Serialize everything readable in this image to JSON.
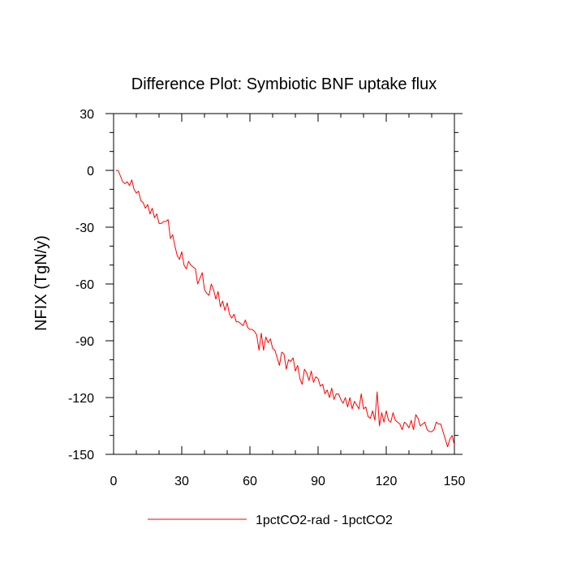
{
  "chart_data": {
    "type": "line",
    "title": "Difference Plot: Symbiotic BNF uptake flux",
    "ylabel": "NFIX  (TgN/y)",
    "xlabel": "",
    "xlim": [
      0,
      150
    ],
    "ylim": [
      -150,
      30
    ],
    "xticks": [
      0,
      30,
      60,
      90,
      120,
      150
    ],
    "yticks": [
      30,
      0,
      -30,
      -60,
      -90,
      -120,
      -150
    ],
    "grid": false,
    "legend_position": "bottom",
    "series": [
      {
        "name": "1pctCO2-rad - 1pctCO2",
        "color": "#ff0000",
        "x": [
          1,
          2,
          3,
          4,
          5,
          6,
          7,
          8,
          9,
          10,
          11,
          12,
          13,
          14,
          15,
          16,
          17,
          18,
          19,
          20,
          21,
          22,
          23,
          24,
          25,
          26,
          27,
          28,
          29,
          30,
          31,
          32,
          33,
          34,
          35,
          36,
          37,
          38,
          39,
          40,
          41,
          42,
          43,
          44,
          45,
          46,
          47,
          48,
          49,
          50,
          51,
          52,
          53,
          54,
          55,
          56,
          57,
          58,
          59,
          60,
          61,
          62,
          63,
          64,
          65,
          66,
          67,
          68,
          69,
          70,
          71,
          72,
          73,
          74,
          75,
          76,
          77,
          78,
          79,
          80,
          81,
          82,
          83,
          84,
          85,
          86,
          87,
          88,
          89,
          90,
          91,
          92,
          93,
          94,
          95,
          96,
          97,
          98,
          99,
          100,
          101,
          102,
          103,
          104,
          105,
          106,
          107,
          108,
          109,
          110,
          111,
          112,
          113,
          114,
          115,
          116,
          117,
          118,
          119,
          120,
          121,
          122,
          123,
          124,
          125,
          126,
          127,
          128,
          129,
          130,
          131,
          132,
          133,
          134,
          135,
          136,
          137,
          138,
          139,
          140,
          141,
          142,
          143,
          144,
          145,
          146,
          147,
          148,
          149,
          150
        ],
        "y": [
          0,
          0,
          -3,
          -6,
          -7,
          -6,
          -8,
          -5,
          -10,
          -12,
          -11,
          -16,
          -17,
          -20,
          -18,
          -23,
          -20,
          -25,
          -23,
          -28,
          -28,
          -27,
          -27,
          -26,
          -36,
          -34,
          -40,
          -45,
          -47,
          -43,
          -50,
          -52,
          -48,
          -50,
          -51,
          -52,
          -60,
          -57,
          -54,
          -63,
          -65,
          -66,
          -60,
          -63,
          -68,
          -64,
          -72,
          -69,
          -74,
          -70,
          -76,
          -78,
          -76,
          -80,
          -80,
          -81,
          -82,
          -79,
          -83,
          -84,
          -84,
          -85,
          -87,
          -95,
          -86,
          -95,
          -88,
          -91,
          -89,
          -94,
          -95,
          -99,
          -103,
          -96,
          -97,
          -105,
          -100,
          -101,
          -99,
          -106,
          -103,
          -110,
          -113,
          -105,
          -107,
          -111,
          -106,
          -112,
          -109,
          -110,
          -114,
          -113,
          -118,
          -116,
          -120,
          -115,
          -121,
          -118,
          -118,
          -121,
          -123,
          -120,
          -125,
          -120,
          -126,
          -122,
          -124,
          -126,
          -118,
          -126,
          -125,
          -130,
          -131,
          -127,
          -132,
          -117,
          -135,
          -128,
          -133,
          -127,
          -132,
          -133,
          -128,
          -132,
          -133,
          -134,
          -137,
          -133,
          -134,
          -136,
          -132,
          -137,
          -129,
          -131,
          -135,
          -134,
          -133,
          -137,
          -138,
          -138,
          -137,
          -133,
          -134,
          -134,
          -138,
          -142,
          -146,
          -142,
          -140,
          -145
        ]
      }
    ]
  }
}
